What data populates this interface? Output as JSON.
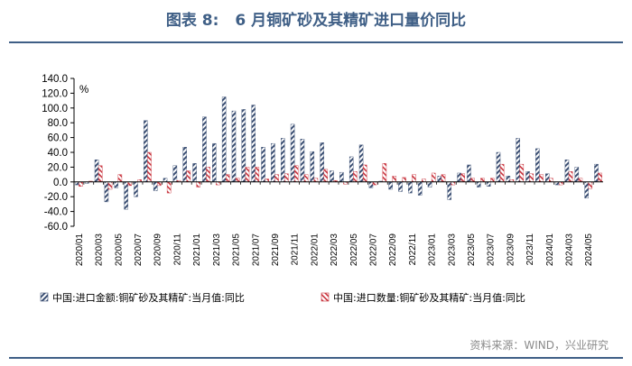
{
  "header": {
    "figure_no": "图表 8:",
    "title": "6 月铜矿砂及其精矿进口量价同比"
  },
  "source": "资料来源：WIND，兴业研究",
  "colors": {
    "amount": "#3b4f73",
    "volume": "#c8323c",
    "title": "#3f5f86"
  },
  "chart_data": {
    "type": "bar",
    "unit_label": "%",
    "ylim": [
      -60,
      140
    ],
    "yticks": [
      "140.0",
      "120.0",
      "100.0",
      "80.0",
      "60.0",
      "40.0",
      "20.0",
      "0.0",
      "-20.0",
      "-40.0",
      "-60.0"
    ],
    "categories": [
      "2020/01",
      "2020/02",
      "2020/03",
      "2020/04",
      "2020/05",
      "2020/06",
      "2020/07",
      "2020/08",
      "2020/09",
      "2020/10",
      "2020/11",
      "2020/12",
      "2021/01",
      "2021/02",
      "2021/03",
      "2021/04",
      "2021/05",
      "2021/06",
      "2021/07",
      "2021/08",
      "2021/09",
      "2021/10",
      "2021/11",
      "2021/12",
      "2022/01",
      "2022/02",
      "2022/03",
      "2022/04",
      "2022/05",
      "2022/06",
      "2022/07",
      "2022/08",
      "2022/09",
      "2022/10",
      "2022/11",
      "2022/12",
      "2023/01",
      "2023/02",
      "2023/03",
      "2023/04",
      "2023/05",
      "2023/06",
      "2023/07",
      "2023/08",
      "2023/09",
      "2023/10",
      "2023/11",
      "2023/12",
      "2024/01",
      "2024/02",
      "2024/03",
      "2024/04",
      "2024/05",
      "2024/06"
    ],
    "xtick_labels": [
      "2020/01",
      "2020/03",
      "2020/05",
      "2020/07",
      "2020/09",
      "2020/11",
      "2021/01",
      "2021/03",
      "2021/05",
      "2021/07",
      "2021/09",
      "2021/11",
      "2022/01",
      "2022/03",
      "2022/05",
      "2022/07",
      "2022/09",
      "2022/11",
      "2023/01",
      "2023/03",
      "2023/05",
      "2023/07",
      "2023/09",
      "2023/11",
      "2024/01",
      "2024/03",
      "2024/05"
    ],
    "series": [
      {
        "name": "中国:进口金额:铜矿砂及其精矿:当月值:同比",
        "values": [
          -4,
          -2,
          30,
          -27,
          -8,
          -37,
          -20,
          83,
          -12,
          5,
          22,
          47,
          25,
          88,
          52,
          115,
          96,
          98,
          104,
          47,
          52,
          59,
          78,
          58,
          41,
          53,
          15,
          13,
          34,
          50,
          -8,
          1,
          -10,
          -13,
          -15,
          -18,
          -7,
          8,
          -24,
          12,
          23,
          -7,
          -6,
          40,
          8,
          59,
          14,
          45,
          11,
          -4,
          30,
          20,
          -22,
          24
        ]
      },
      {
        "name": "中国:进口数量:铜矿砂及其精矿:当月值:同比",
        "values": [
          -6,
          1,
          22,
          -10,
          10,
          -5,
          3,
          40,
          -5,
          -15,
          2,
          15,
          -7,
          20,
          -4,
          10,
          5,
          20,
          20,
          4,
          10,
          11,
          22,
          10,
          5,
          17,
          2,
          -3,
          14,
          23,
          -4,
          25,
          8,
          6,
          10,
          4,
          12,
          10,
          -4,
          11,
          5,
          5,
          5,
          24,
          3,
          24,
          11,
          10,
          5,
          -4,
          14,
          5,
          -9,
          12
        ]
      }
    ],
    "legend_position": "bottom",
    "grid": false
  }
}
